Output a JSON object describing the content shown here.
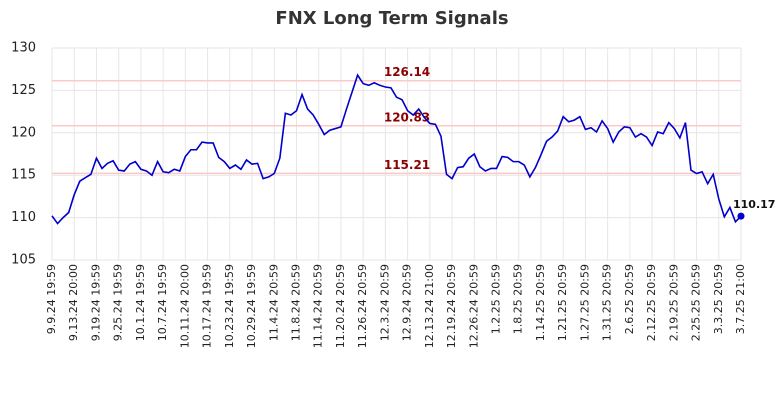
{
  "chart_data": {
    "type": "line",
    "title": "FNX Long Term Signals",
    "categories": [
      "9.9.24 19:59",
      null,
      null,
      null,
      "9.13.24 20:00",
      null,
      null,
      null,
      "9.19.24 19:59",
      null,
      null,
      null,
      "9.25.24 19:59",
      null,
      null,
      null,
      "10.1.24 19:59",
      null,
      null,
      null,
      "10.7.24 19:59",
      null,
      null,
      null,
      "10.11.24 20:00",
      null,
      null,
      null,
      "10.17.24 19:59",
      null,
      null,
      null,
      "10.23.24 19:59",
      null,
      null,
      null,
      "10.29.24 19:59",
      null,
      null,
      null,
      "11.4.24 20:59",
      null,
      null,
      null,
      "11.8.24 20:59",
      null,
      null,
      null,
      "11.14.24 20:59",
      null,
      null,
      null,
      "11.20.24 20:59",
      null,
      null,
      null,
      "11.26.24 20:59",
      null,
      null,
      null,
      "12.3.24 20:59",
      null,
      null,
      null,
      "12.9.24 20:59",
      null,
      null,
      null,
      "12.13.24 21:00",
      null,
      null,
      null,
      "12.19.24 20:59",
      null,
      null,
      null,
      "12.26.24 20:59",
      null,
      null,
      null,
      "1.2.25 20:59",
      null,
      null,
      null,
      "1.8.25 20:59",
      null,
      null,
      null,
      "1.14.25 20:59",
      null,
      null,
      null,
      "1.21.25 20:59",
      null,
      null,
      null,
      "1.27.25 20:59",
      null,
      null,
      null,
      "1.31.25 20:59",
      null,
      null,
      null,
      "2.6.25 20:59",
      null,
      null,
      null,
      "2.12.25 20:59",
      null,
      null,
      null,
      "2.19.25 20:59",
      null,
      null,
      null,
      "2.25.25 20:59",
      null,
      null,
      null,
      "3.3.25 20:59",
      null,
      null,
      null,
      "3.7.25 21:00"
    ],
    "values": [
      110.2,
      109.3,
      110,
      110.6,
      112.7,
      114.3,
      114.7,
      115.1,
      117,
      115.8,
      116.4,
      116.7,
      115.6,
      115.5,
      116.3,
      116.6,
      115.7,
      115.5,
      115,
      116.6,
      115.4,
      115.3,
      115.7,
      115.5,
      117.2,
      118,
      118,
      118.9,
      118.8,
      118.8,
      117.1,
      116.6,
      115.8,
      116.2,
      115.7,
      116.8,
      116.3,
      116.4,
      114.6,
      114.8,
      115.2,
      117,
      122.3,
      122.1,
      122.6,
      124.5,
      122.8,
      122.1,
      121,
      119.8,
      120.3,
      120.5,
      120.7,
      122.8,
      124.8,
      126.8,
      125.8,
      125.6,
      125.9,
      125.6,
      125.4,
      125.3,
      124.2,
      123.9,
      122.6,
      122.1,
      122.8,
      121.8,
      121.1,
      121,
      119.6,
      115.1,
      114.6,
      115.9,
      116,
      117,
      117.5,
      116,
      115.5,
      115.8,
      115.8,
      117.2,
      117.1,
      116.6,
      116.6,
      116.2,
      114.8,
      115.9,
      117.4,
      119,
      119.5,
      120.2,
      121.9,
      121.3,
      121.5,
      121.9,
      120.4,
      120.6,
      120.1,
      121.4,
      120.5,
      118.9,
      120.1,
      120.7,
      120.6,
      119.5,
      119.9,
      119.5,
      118.5,
      120.1,
      119.9,
      121.2,
      120.5,
      119.4,
      121.2,
      115.6,
      115.2,
      115.4,
      114,
      115.1,
      112.2,
      110.1,
      111.2,
      109.5,
      110.17
    ],
    "color": "#0000cc",
    "hlines": [
      126.14,
      120.83,
      115.21
    ],
    "hline_color": "#ffc8c8",
    "hline_label_color": "#8b0000",
    "ylim": [
      105,
      130
    ],
    "yticks": [
      105,
      110,
      115,
      120,
      125,
      130
    ],
    "grid": true
  }
}
